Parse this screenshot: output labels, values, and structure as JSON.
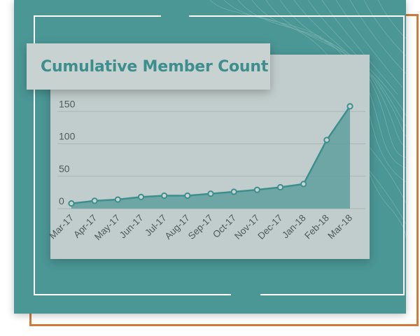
{
  "chart_data": {
    "type": "area",
    "title": "Cumulative Member Count",
    "categories": [
      "Mar-17",
      "Apr-17",
      "May-17",
      "Jun-17",
      "Jul-17",
      "Aug-17",
      "Sep-17",
      "Oct-17",
      "Nov-17",
      "Dec-17",
      "Jan-18",
      "Feb-18",
      "Mar-18"
    ],
    "series": [
      {
        "values": [
          8,
          12,
          14,
          18,
          20,
          20,
          23,
          26,
          29,
          33,
          38,
          106,
          158
        ]
      }
    ],
    "yticks": [
      "0",
      "50",
      "100",
      "150"
    ],
    "ylim": [
      0,
      160
    ],
    "xlabel": "",
    "ylabel": "",
    "grid": true,
    "colors": {
      "line": "#3d8f8e",
      "area": "#5e9f9d",
      "marker_fill": "#c9d5d3",
      "title": "#3d8f8e",
      "panel": "#4b9796",
      "card": "#c1cdcc",
      "accent_frame": "#d07a3c"
    }
  }
}
